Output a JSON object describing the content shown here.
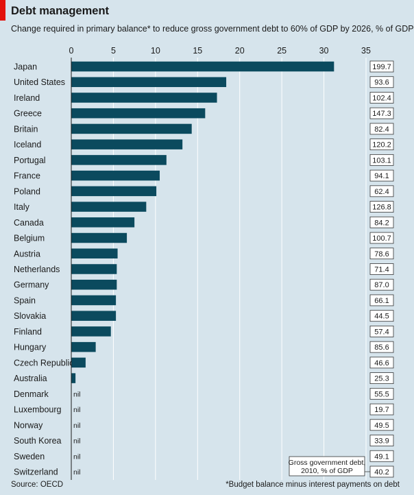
{
  "title": "Debt management",
  "subtitle": "Change required in primary balance* to reduce gross government debt to 60% of GDP by 2026, % of GDP",
  "source": "Source: OECD",
  "footnote": "*Budget balance minus interest payments on debt",
  "debt_box_label_line1": "Gross government debt,",
  "debt_box_label_line2": "2010, % of GDP",
  "nil_label": "nil",
  "colors": {
    "background": "#d6e4ec",
    "bar": "#0b4a5e",
    "accent_red": "#e3120b",
    "gridline": "#ffffff",
    "box_fill": "#ffffff"
  },
  "chart_data": {
    "type": "bar",
    "orientation": "horizontal",
    "xlim": [
      0,
      35
    ],
    "xticks": [
      0,
      5,
      10,
      15,
      20,
      25,
      30,
      35
    ],
    "grid": true,
    "categories": [
      "Japan",
      "United States",
      "Ireland",
      "Greece",
      "Britain",
      "Iceland",
      "Portugal",
      "France",
      "Poland",
      "Italy",
      "Canada",
      "Belgium",
      "Austria",
      "Netherlands",
      "Germany",
      "Spain",
      "Slovakia",
      "Finland",
      "Hungary",
      "Czech Republic",
      "Australia",
      "Denmark",
      "Luxembourg",
      "Norway",
      "South Korea",
      "Sweden",
      "Switzerland"
    ],
    "values": [
      31.2,
      18.4,
      17.3,
      15.9,
      14.3,
      13.2,
      11.3,
      10.5,
      10.1,
      8.9,
      7.5,
      6.6,
      5.5,
      5.4,
      5.4,
      5.3,
      5.3,
      4.7,
      2.9,
      1.7,
      0.5,
      null,
      null,
      null,
      null,
      null,
      null
    ],
    "gross_debt_2010": [
      "199.7",
      "93.6",
      "102.4",
      "147.3",
      "82.4",
      "120.2",
      "103.1",
      "94.1",
      "62.4",
      "126.8",
      "84.2",
      "100.7",
      "78.6",
      "71.4",
      "87.0",
      "66.1",
      "44.5",
      "57.4",
      "85.6",
      "46.6",
      "25.3",
      "55.5",
      "19.7",
      "49.5",
      "33.9",
      "49.1",
      "40.2"
    ]
  }
}
